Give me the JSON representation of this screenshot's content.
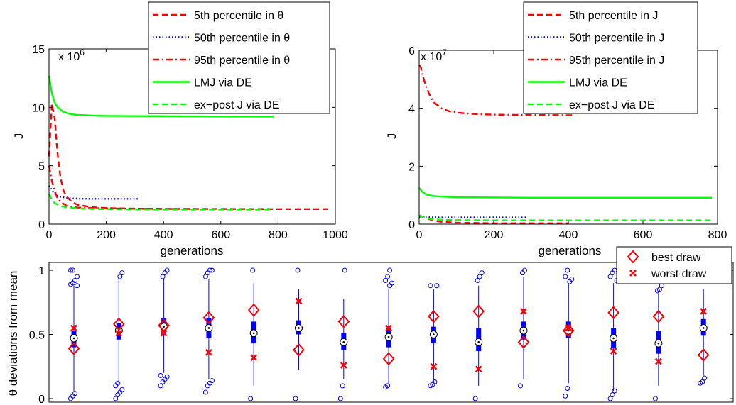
{
  "chart_data": [
    {
      "type": "line",
      "id": "top-left",
      "exponent_label": "x 10",
      "exponent_power": "6",
      "xlabel": "generations",
      "ylabel": "J",
      "xlim": [
        0,
        1000
      ],
      "ylim": [
        0,
        15
      ],
      "xticks": [
        "0",
        "200",
        "400",
        "600",
        "800",
        "1000"
      ],
      "yticks": [
        "0",
        "5",
        "10",
        "15"
      ],
      "legend_position": "top-right",
      "series": [
        {
          "name": "5th percentile in θ",
          "color": "#ff0000",
          "dash": "dashed",
          "x": [
            0,
            10,
            20,
            30,
            40,
            50,
            60,
            80,
            100,
            150,
            200,
            300,
            400,
            600,
            800,
            980
          ],
          "y": [
            5.8,
            10.3,
            9.0,
            6.0,
            4.0,
            2.9,
            2.4,
            1.9,
            1.65,
            1.45,
            1.38,
            1.33,
            1.31,
            1.3,
            1.29,
            1.29
          ]
        },
        {
          "name": "50th percentile in θ",
          "color": "#0000ff",
          "dash": "dotted",
          "x": [
            0,
            10,
            20,
            40,
            60,
            80,
            100,
            150,
            200,
            310
          ],
          "y": [
            3.3,
            2.9,
            2.6,
            2.35,
            2.25,
            2.2,
            2.18,
            2.17,
            2.17,
            2.17
          ]
        },
        {
          "name": "95th percentile in θ",
          "color": "#ff0000",
          "dash": "dashdot",
          "x": [
            0,
            10,
            20,
            30,
            40,
            60,
            80,
            100,
            150,
            200,
            300,
            400,
            500
          ],
          "y": [
            5.0,
            3.7,
            2.8,
            2.2,
            1.9,
            1.6,
            1.48,
            1.42,
            1.38,
            1.35,
            1.32,
            1.3,
            1.3
          ]
        },
        {
          "name": "LMJ via DE",
          "color": "#00ff00",
          "dash": "solid",
          "x": [
            0,
            10,
            20,
            30,
            50,
            80,
            100,
            150,
            200,
            300,
            400,
            600,
            785
          ],
          "y": [
            12.7,
            11.2,
            10.4,
            10.0,
            9.6,
            9.4,
            9.35,
            9.3,
            9.27,
            9.25,
            9.24,
            9.22,
            9.2
          ]
        },
        {
          "name": "ex−post J via DE",
          "color": "#00ff00",
          "dash": "dashed",
          "x": [
            0,
            10,
            20,
            40,
            60,
            100,
            150,
            200,
            300,
            400,
            600,
            785
          ],
          "y": [
            2.6,
            2.1,
            1.8,
            1.55,
            1.45,
            1.35,
            1.3,
            1.28,
            1.26,
            1.25,
            1.25,
            1.25
          ]
        }
      ]
    },
    {
      "type": "line",
      "id": "top-right",
      "exponent_label": "x 10",
      "exponent_power": "7",
      "xlabel": "generations",
      "ylabel": "J",
      "xlim": [
        0,
        800
      ],
      "ylim": [
        0,
        6
      ],
      "xticks": [
        "0",
        "200",
        "400",
        "600",
        "800"
      ],
      "yticks": [
        "0",
        "2",
        "4",
        "6"
      ],
      "legend_position": "top-right",
      "series": [
        {
          "name": "5th percentile in J",
          "color": "#ff0000",
          "dash": "dashed",
          "x": [
            0,
            10,
            20,
            40,
            60,
            100,
            150,
            200,
            300,
            400
          ],
          "y": [
            0.3,
            0.25,
            0.2,
            0.12,
            0.08,
            0.05,
            0.04,
            0.03,
            0.03,
            0.03
          ]
        },
        {
          "name": "50th percentile in J",
          "color": "#0000ff",
          "dash": "dotted",
          "x": [
            0,
            20,
            50,
            100,
            200,
            290
          ],
          "y": [
            0.25,
            0.24,
            0.23,
            0.23,
            0.23,
            0.23
          ]
        },
        {
          "name": "95th percentile in J",
          "color": "#ff0000",
          "dash": "dashdot",
          "x": [
            0,
            5,
            10,
            20,
            30,
            40,
            60,
            80,
            100,
            150,
            200,
            300,
            410
          ],
          "y": [
            5.5,
            5.4,
            5.1,
            4.7,
            4.4,
            4.2,
            4.0,
            3.9,
            3.85,
            3.8,
            3.78,
            3.77,
            3.76
          ]
        },
        {
          "name": "LMJ via DE",
          "color": "#00ff00",
          "dash": "solid",
          "x": [
            0,
            10,
            20,
            40,
            60,
            100,
            200,
            300,
            400,
            600,
            785
          ],
          "y": [
            1.25,
            1.1,
            1.02,
            0.97,
            0.95,
            0.93,
            0.92,
            0.91,
            0.91,
            0.91,
            0.91
          ]
        },
        {
          "name": "ex−post J via DE",
          "color": "#00ff00",
          "dash": "dashed",
          "x": [
            0,
            10,
            20,
            40,
            100,
            200,
            300,
            400,
            600,
            785
          ],
          "y": [
            0.3,
            0.25,
            0.2,
            0.16,
            0.14,
            0.13,
            0.13,
            0.13,
            0.13,
            0.13
          ]
        }
      ]
    },
    {
      "type": "box",
      "id": "bottom",
      "ylabel": "θ deviations from mean",
      "ylim": [
        0,
        1
      ],
      "yticks": [
        "0",
        "0.5",
        "1"
      ],
      "legend_position": "top-right",
      "legend": [
        {
          "name": "best draw",
          "marker": "diamond",
          "color": "#ff0000"
        },
        {
          "name": "worst draw",
          "marker": "x",
          "color": "#ff0000"
        }
      ],
      "parameters": [
        {
          "median": 0.47,
          "q1": 0.4,
          "q3": 0.53,
          "wlo": 0.05,
          "whi": 0.88,
          "best": 0.39,
          "worst": 0.55,
          "outliers": [
            0.0,
            0.02,
            0.04,
            0.88,
            0.89,
            0.9,
            0.92,
            0.95,
            1.0,
            1.0
          ]
        },
        {
          "median": 0.53,
          "q1": 0.46,
          "q3": 0.59,
          "wlo": 0.12,
          "whi": 0.93,
          "best": 0.58,
          "worst": 0.51,
          "outliers": [
            0.0,
            0.03,
            0.05,
            0.07,
            0.1,
            0.12,
            0.95,
            0.98
          ]
        },
        {
          "median": 0.56,
          "q1": 0.49,
          "q3": 0.63,
          "wlo": 0.2,
          "whi": 0.93,
          "best": 0.57,
          "worst": 0.51,
          "outliers": [
            0.1,
            0.13,
            0.15,
            0.17,
            0.18,
            0.95,
            0.98,
            1.0
          ]
        },
        {
          "median": 0.55,
          "q1": 0.47,
          "q3": 0.63,
          "wlo": 0.15,
          "whi": 0.93,
          "best": 0.63,
          "worst": 0.36,
          "outliers": [
            0.05,
            0.1,
            0.12,
            0.14,
            0.95,
            0.98,
            1.0,
            1.0
          ]
        },
        {
          "median": 0.51,
          "q1": 0.43,
          "q3": 0.6,
          "wlo": 0.1,
          "whi": 0.9,
          "best": 0.69,
          "worst": 0.32,
          "outliers": [
            0.0,
            1.0
          ]
        },
        {
          "median": 0.55,
          "q1": 0.5,
          "q3": 0.61,
          "wlo": 0.22,
          "whi": 0.85,
          "best": 0.38,
          "worst": 0.76,
          "outliers": [
            0.0,
            1.0
          ]
        },
        {
          "median": 0.44,
          "q1": 0.38,
          "q3": 0.51,
          "wlo": 0.15,
          "whi": 0.78,
          "best": 0.6,
          "worst": 0.26,
          "outliers": [
            0.0,
            0.1,
            1.0
          ]
        },
        {
          "median": 0.48,
          "q1": 0.4,
          "q3": 0.55,
          "wlo": 0.12,
          "whi": 0.85,
          "best": 0.31,
          "worst": 0.55,
          "outliers": [
            0.09,
            0.1,
            0.88,
            0.9,
            0.92,
            0.95,
            1.0
          ]
        },
        {
          "median": 0.5,
          "q1": 0.43,
          "q3": 0.56,
          "wlo": 0.13,
          "whi": 0.85,
          "best": 0.64,
          "worst": 0.25,
          "outliers": [
            0.1,
            0.11,
            0.13,
            0.88,
            0.88
          ]
        },
        {
          "median": 0.44,
          "q1": 0.37,
          "q3": 0.55,
          "wlo": 0.1,
          "whi": 0.88,
          "best": 0.68,
          "worst": 0.23,
          "outliers": [
            0.0,
            0.92,
            0.95,
            0.98
          ]
        },
        {
          "median": 0.53,
          "q1": 0.46,
          "q3": 0.6,
          "wlo": 0.15,
          "whi": 0.95,
          "best": 0.44,
          "worst": 0.68,
          "outliers": [
            0.1,
            0.98,
            1.0
          ]
        },
        {
          "median": 0.53,
          "q1": 0.47,
          "q3": 0.6,
          "wlo": 0.12,
          "whi": 0.9,
          "best": 0.53,
          "worst": 0.55,
          "outliers": [
            0.02,
            0.08,
            0.91,
            0.93,
            0.95,
            1.0
          ]
        },
        {
          "median": 0.47,
          "q1": 0.39,
          "q3": 0.55,
          "wlo": 0.06,
          "whi": 0.9,
          "best": 0.67,
          "worst": 0.37,
          "outliers": [
            0.0,
            0.03,
            0.06,
            0.92,
            0.95,
            0.98,
            1.0
          ]
        },
        {
          "median": 0.43,
          "q1": 0.35,
          "q3": 0.53,
          "wlo": 0.1,
          "whi": 0.82,
          "best": 0.64,
          "worst": 0.29,
          "outliers": [
            0.0,
            0.84,
            0.85,
            0.88,
            1.0
          ]
        },
        {
          "median": 0.55,
          "q1": 0.49,
          "q3": 0.62,
          "wlo": 0.18,
          "whi": 0.85,
          "best": 0.34,
          "worst": 0.68,
          "outliers": [
            0.12,
            0.13,
            0.16,
            1.0
          ]
        }
      ]
    }
  ]
}
